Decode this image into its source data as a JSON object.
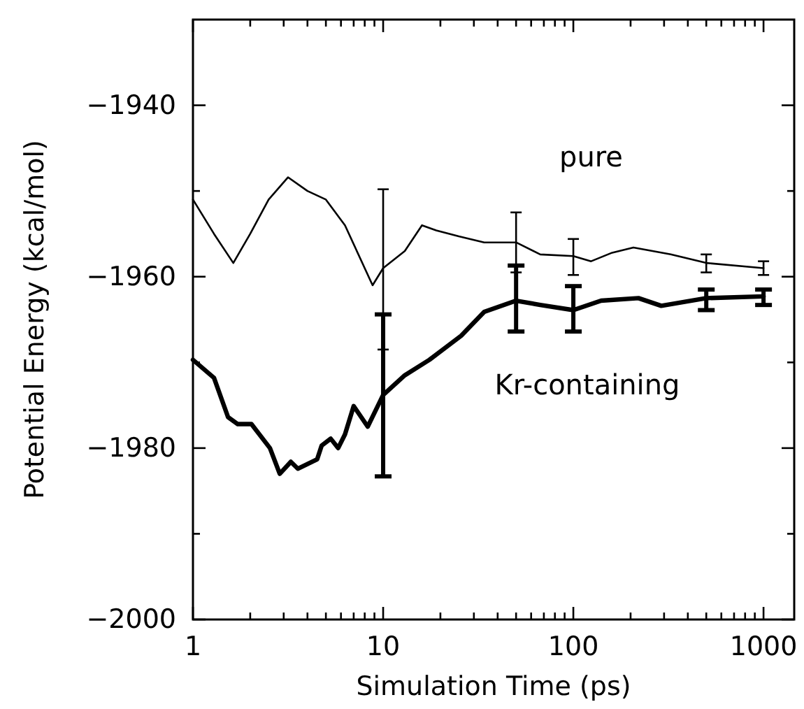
{
  "chart_data": {
    "type": "line",
    "xlabel": "Simulation Time (ps)",
    "ylabel": "Potential Energy (kcal/mol)",
    "log": "x",
    "grid": false,
    "legend": false,
    "marker": "none",
    "line_style": "solid",
    "xlim": [
      1,
      1450
    ],
    "ylim": [
      -2000,
      -1930
    ],
    "xticks": [
      1,
      {
        "value": 2,
        "label": null
      },
      {
        "value": 3,
        "label": null
      },
      {
        "value": 4,
        "label": null
      },
      {
        "value": 5,
        "label": null
      },
      {
        "value": 6,
        "label": null
      },
      {
        "value": 7,
        "label": null
      },
      {
        "value": 8,
        "label": null
      },
      {
        "value": 9,
        "label": null
      },
      10,
      {
        "value": 20,
        "label": null
      },
      {
        "value": 30,
        "label": null
      },
      {
        "value": 40,
        "label": null
      },
      {
        "value": 50,
        "label": null
      },
      {
        "value": 60,
        "label": null
      },
      {
        "value": 70,
        "label": null
      },
      {
        "value": 80,
        "label": null
      },
      {
        "value": 90,
        "label": null
      },
      100,
      {
        "value": 200,
        "label": null
      },
      {
        "value": 300,
        "label": null
      },
      {
        "value": 400,
        "label": null
      },
      {
        "value": 500,
        "label": null
      },
      {
        "value": 600,
        "label": null
      },
      {
        "value": 700,
        "label": null
      },
      {
        "value": 800,
        "label": null
      },
      {
        "value": 900,
        "label": null
      },
      1000
    ],
    "yticks": [
      {
        "value": -2000,
        "label": "−2000"
      },
      {
        "value": -1990,
        "label": null
      },
      {
        "value": -1980,
        "label": "−1980"
      },
      {
        "value": -1970,
        "label": null
      },
      {
        "value": -1960,
        "label": "−1960"
      },
      {
        "value": -1950,
        "label": null
      },
      {
        "value": -1940,
        "label": "−1940"
      }
    ],
    "series": [
      {
        "name": "pure",
        "color": "#000000",
        "x": [
          1,
          1.29,
          1.63,
          2,
          2.5,
          3.16,
          4,
          5,
          6.3,
          8.8,
          10,
          13,
          16,
          19,
          25,
          34,
          50,
          67,
          100,
          124,
          160,
          207,
          325,
          500,
          1000
        ],
        "values": [
          -1951,
          -1955,
          -1958.4,
          -1955,
          -1951,
          -1948.4,
          -1950,
          -1951,
          -1954,
          -1961,
          -1959,
          -1957,
          -1954,
          -1954.6,
          -1955.3,
          -1956,
          -1956,
          -1957.4,
          -1957.6,
          -1958.2,
          -1957.2,
          -1956.6,
          -1957.4,
          -1958.4,
          -1959
        ],
        "errors": [
          null,
          null,
          null,
          null,
          null,
          null,
          null,
          null,
          null,
          null,
          [
            -1968.5,
            -1949.8
          ],
          null,
          null,
          null,
          null,
          null,
          [
            -1959.5,
            -1952.5
          ],
          null,
          [
            -1959.8,
            -1955.6
          ],
          null,
          null,
          null,
          null,
          [
            -1959.5,
            -1957.4
          ],
          [
            -1959.8,
            -1958.2
          ]
        ]
      },
      {
        "name": "Kr-containing",
        "color": "#000000",
        "x": [
          1,
          1.29,
          1.53,
          1.72,
          2.03,
          2.54,
          2.86,
          3.27,
          3.56,
          4.5,
          4.75,
          5.3,
          5.8,
          6.3,
          7,
          8.3,
          10,
          13,
          17.5,
          25.7,
          34,
          50,
          67,
          100,
          140,
          220,
          290,
          500,
          1000
        ],
        "values": [
          -1969.7,
          -1971.8,
          -1976.4,
          -1977.2,
          -1977.2,
          -1980,
          -1983,
          -1981.6,
          -1982.4,
          -1981.3,
          -1979.7,
          -1978.9,
          -1980,
          -1978.4,
          -1975.1,
          -1977.5,
          -1973.8,
          -1971.5,
          -1969.7,
          -1966.9,
          -1964.1,
          -1962.8,
          -1963.3,
          -1963.9,
          -1962.8,
          -1962.5,
          -1963.4,
          -1962.5,
          -1962.3
        ],
        "errors": [
          null,
          null,
          null,
          null,
          null,
          null,
          null,
          null,
          null,
          null,
          null,
          null,
          null,
          null,
          null,
          null,
          [
            -1983.3,
            -1964.4
          ],
          null,
          null,
          null,
          null,
          [
            -1966.4,
            -1958.7
          ],
          null,
          [
            -1966.4,
            -1961.1
          ],
          null,
          null,
          null,
          [
            -1963.9,
            -1961.5
          ],
          [
            -1963.3,
            -1961.5
          ]
        ]
      }
    ]
  }
}
